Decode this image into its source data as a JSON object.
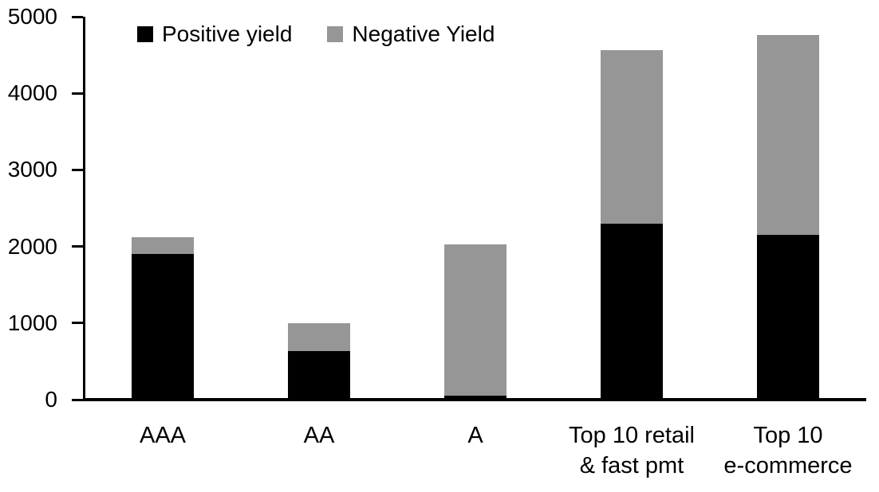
{
  "chart_data": {
    "type": "bar",
    "stacked": true,
    "title": "",
    "categories": [
      "AAA",
      "AA",
      "A",
      "Top 10 retail\n& fast pmt",
      "Top 10\ne-commerce"
    ],
    "series": [
      {
        "name": "Positive yield",
        "color": "#000000",
        "values": [
          1900,
          630,
          50,
          2300,
          2150
        ]
      },
      {
        "name": "Negative Yield",
        "color": "#969696",
        "values": [
          220,
          370,
          1980,
          2260,
          2610
        ]
      }
    ],
    "ylim": [
      0,
      5000
    ],
    "yticks": [
      0,
      1000,
      2000,
      3000,
      4000,
      5000
    ],
    "xlabel": "",
    "ylabel": "",
    "grid": false,
    "legend_position": "top-inside",
    "axis_color": "#000000",
    "background_color": "#ffffff"
  }
}
